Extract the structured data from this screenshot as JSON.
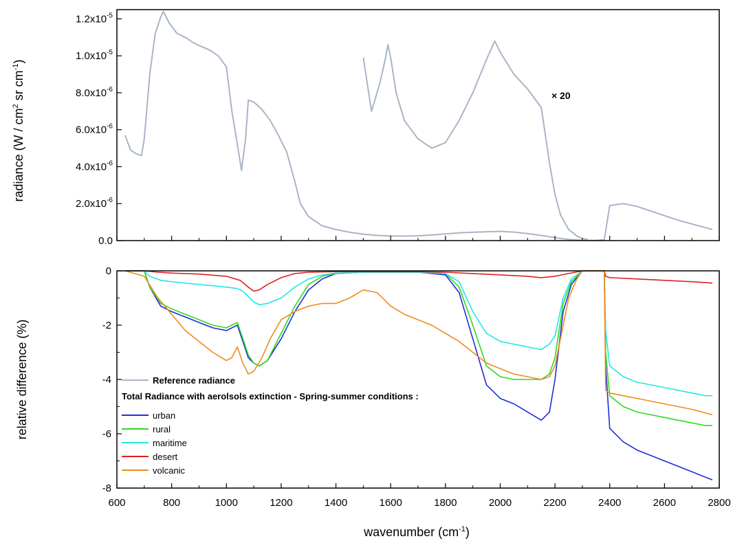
{
  "chart_data": [
    {
      "type": "line",
      "ylabel_main": "radiance (W / cm",
      "ylabel_sup1": "2",
      "ylabel_mid": " sr cm",
      "ylabel_sup2": "-1",
      "ylabel_end": ")",
      "xlim": [
        600,
        2800
      ],
      "ylim": [
        0,
        1.25e-05
      ],
      "grid": false,
      "annotation": "× 20",
      "yticks": [
        {
          "value": 0,
          "label": "0.0",
          "exp": ""
        },
        {
          "value": 2e-06,
          "label": "2.0x10",
          "exp": "-6"
        },
        {
          "value": 4e-06,
          "label": "4.0x10",
          "exp": "-6"
        },
        {
          "value": 6e-06,
          "label": "6.0x10",
          "exp": "-6"
        },
        {
          "value": 8e-06,
          "label": "8.0x10",
          "exp": "-6"
        },
        {
          "value": 1e-05,
          "label": "1.0x10",
          "exp": "-5"
        },
        {
          "value": 1.2e-05,
          "label": "1.2x10",
          "exp": "-5"
        }
      ],
      "series": [
        {
          "color": "#a9b4c6",
          "x": [
            630,
            650,
            670,
            690,
            700,
            720,
            740,
            760,
            770,
            790,
            820,
            850,
            880,
            910,
            940,
            970,
            1000,
            1020,
            1040,
            1055,
            1070,
            1080,
            1100,
            1130,
            1160,
            1190,
            1220,
            1250,
            1270,
            1300,
            1350,
            1400,
            1450,
            1500,
            1550,
            1600,
            1650,
            1700,
            1750,
            1800,
            1850,
            1900,
            1950,
            2000,
            2050,
            2100,
            2150,
            2200,
            2250,
            2300,
            2350,
            2380,
            2400,
            2450,
            2500,
            2550,
            2600,
            2650,
            2700,
            2750,
            2775
          ],
          "y": [
            5.7e-06,
            4.9e-06,
            4.7e-06,
            4.6e-06,
            5.5e-06,
            9e-06,
            1.12e-05,
            1.21e-05,
            1.24e-05,
            1.18e-05,
            1.12e-05,
            1.1e-05,
            1.07e-05,
            1.05e-05,
            1.03e-05,
            1e-05,
            9.4e-06,
            7e-06,
            5.2e-06,
            3.8e-06,
            5.5e-06,
            7.6e-06,
            7.5e-06,
            7.1e-06,
            6.5e-06,
            5.7e-06,
            4.8e-06,
            3.2e-06,
            2e-06,
            1.3e-06,
            8e-07,
            6e-07,
            4.5e-07,
            3.5e-07,
            2.8e-07,
            2.5e-07,
            2.4e-07,
            2.6e-07,
            3e-07,
            3.6e-07,
            4.2e-07,
            4.5e-07,
            4.8e-07,
            5e-07,
            4.6e-07,
            3.8e-07,
            2.8e-07,
            1.6e-07,
            6e-08,
            2e-08,
            1e-08,
            5e-08,
            1.9e-06,
            2e-06,
            1.85e-06,
            1.6e-06,
            1.35e-06,
            1.1e-06,
            9e-07,
            7e-07,
            6e-07
          ]
        },
        {
          "color": "#a9b4c6",
          "x": [
            1500,
            1530,
            1560,
            1580,
            1590,
            1600,
            1620,
            1650,
            1700,
            1750,
            1800,
            1850,
            1900,
            1950,
            1980,
            2000,
            2050,
            2100,
            2150,
            2180,
            2200,
            2220,
            2250,
            2280,
            2300,
            2320
          ],
          "y": [
            9.9e-06,
            7e-06,
            8.5e-06,
            9.8e-06,
            1.06e-05,
            9.9e-06,
            8e-06,
            6.5e-06,
            5.5e-06,
            5e-06,
            5.3e-06,
            6.5e-06,
            8e-06,
            9.8e-06,
            1.08e-05,
            1.02e-05,
            9e-06,
            8.2e-06,
            7.2e-06,
            4.2e-06,
            2.5e-06,
            1.4e-06,
            6e-07,
            2.5e-07,
            1.2e-07,
            6e-08
          ]
        }
      ]
    },
    {
      "type": "line",
      "ylabel": "relative difference (%)",
      "xlabel_main": "wavenumber (cm",
      "xlabel_sup": "-1",
      "xlabel_end": ")",
      "xlim": [
        600,
        2800
      ],
      "ylim": [
        -8,
        0
      ],
      "grid": false,
      "xticks": [
        600,
        800,
        1000,
        1200,
        1400,
        1600,
        1800,
        2000,
        2200,
        2400,
        2600,
        2800
      ],
      "yticks": [
        {
          "value": 0,
          "label": "0"
        },
        {
          "value": -2,
          "label": "-2"
        },
        {
          "value": -4,
          "label": "-4"
        },
        {
          "value": -6,
          "label": "-6"
        },
        {
          "value": -8,
          "label": "-8"
        }
      ],
      "legend": {
        "reference": "Reference radiance",
        "header": "Total Radiance with aerolsols extinction - Spring-summer conditions :",
        "placement": "bottom-left"
      },
      "series": [
        {
          "name": "urban",
          "color": "#1c2ed6",
          "x": [
            630,
            700,
            720,
            760,
            800,
            850,
            900,
            950,
            1000,
            1040,
            1060,
            1080,
            1100,
            1120,
            1150,
            1200,
            1250,
            1300,
            1350,
            1400,
            1500,
            1600,
            1700,
            1800,
            1850,
            1900,
            1950,
            2000,
            2050,
            2100,
            2150,
            2180,
            2200,
            2230,
            2260,
            2300,
            2380,
            2385,
            2400,
            2450,
            2500,
            2550,
            2600,
            2650,
            2700,
            2750,
            2775
          ],
          "y": [
            0,
            0,
            -0.6,
            -1.3,
            -1.5,
            -1.7,
            -1.9,
            -2.1,
            -2.2,
            -2.0,
            -2.6,
            -3.2,
            -3.4,
            -3.5,
            -3.3,
            -2.5,
            -1.5,
            -0.7,
            -0.3,
            -0.1,
            -0.05,
            -0.05,
            -0.05,
            -0.15,
            -0.8,
            -2.5,
            -4.2,
            -4.7,
            -4.9,
            -5.2,
            -5.5,
            -5.2,
            -4.0,
            -1.5,
            -0.5,
            0,
            0,
            -3.5,
            -5.8,
            -6.3,
            -6.6,
            -6.8,
            -7.0,
            -7.2,
            -7.4,
            -7.6,
            -7.7
          ]
        },
        {
          "name": "rural",
          "color": "#2ed81e",
          "x": [
            630,
            700,
            720,
            760,
            800,
            850,
            900,
            950,
            1000,
            1040,
            1060,
            1080,
            1100,
            1120,
            1150,
            1200,
            1250,
            1300,
            1350,
            1400,
            1500,
            1600,
            1700,
            1800,
            1850,
            1900,
            1950,
            2000,
            2050,
            2100,
            2150,
            2180,
            2200,
            2230,
            2260,
            2300,
            2380,
            2385,
            2400,
            2450,
            2500,
            2550,
            2600,
            2650,
            2700,
            2750,
            2775
          ],
          "y": [
            0,
            0,
            -0.6,
            -1.2,
            -1.4,
            -1.6,
            -1.8,
            -2.0,
            -2.1,
            -1.9,
            -2.5,
            -3.1,
            -3.4,
            -3.5,
            -3.3,
            -2.3,
            -1.3,
            -0.5,
            -0.2,
            -0.1,
            -0.05,
            -0.05,
            -0.05,
            -0.1,
            -0.6,
            -2.0,
            -3.5,
            -3.9,
            -4.0,
            -4.0,
            -4.0,
            -3.8,
            -3.2,
            -1.2,
            -0.4,
            0,
            0,
            -3.0,
            -4.6,
            -5.0,
            -5.2,
            -5.3,
            -5.4,
            -5.5,
            -5.6,
            -5.7,
            -5.7
          ]
        },
        {
          "name": "maritime",
          "color": "#22e6e6",
          "x": [
            630,
            700,
            720,
            760,
            800,
            850,
            900,
            950,
            1000,
            1040,
            1060,
            1080,
            1100,
            1120,
            1150,
            1200,
            1250,
            1300,
            1350,
            1400,
            1500,
            1600,
            1700,
            1800,
            1850,
            1900,
            1950,
            2000,
            2050,
            2100,
            2150,
            2180,
            2200,
            2230,
            2260,
            2300,
            2380,
            2385,
            2400,
            2450,
            2500,
            2550,
            2600,
            2650,
            2700,
            2750,
            2775
          ],
          "y": [
            0,
            0,
            -0.2,
            -0.35,
            -0.4,
            -0.45,
            -0.5,
            -0.55,
            -0.6,
            -0.65,
            -0.75,
            -0.95,
            -1.15,
            -1.25,
            -1.2,
            -1.0,
            -0.6,
            -0.3,
            -0.15,
            -0.08,
            -0.05,
            -0.05,
            -0.05,
            -0.1,
            -0.4,
            -1.5,
            -2.3,
            -2.6,
            -2.7,
            -2.8,
            -2.9,
            -2.7,
            -2.4,
            -1.0,
            -0.3,
            0,
            0,
            -2.2,
            -3.5,
            -3.9,
            -4.1,
            -4.2,
            -4.3,
            -4.4,
            -4.5,
            -4.6,
            -4.6
          ]
        },
        {
          "name": "desert",
          "color": "#dc2020",
          "x": [
            630,
            700,
            750,
            800,
            900,
            1000,
            1050,
            1080,
            1100,
            1120,
            1150,
            1200,
            1250,
            1300,
            1400,
            1500,
            1600,
            1700,
            1800,
            1900,
            2000,
            2100,
            2150,
            2200,
            2250,
            2300,
            2380,
            2385,
            2400,
            2500,
            2600,
            2700,
            2775
          ],
          "y": [
            0,
            0,
            -0.05,
            -0.08,
            -0.12,
            -0.2,
            -0.35,
            -0.6,
            -0.75,
            -0.7,
            -0.5,
            -0.25,
            -0.1,
            -0.05,
            -0.03,
            -0.03,
            -0.03,
            -0.03,
            -0.05,
            -0.1,
            -0.15,
            -0.2,
            -0.25,
            -0.2,
            -0.1,
            0,
            0,
            -0.2,
            -0.25,
            -0.3,
            -0.35,
            -0.4,
            -0.45
          ]
        },
        {
          "name": "volcanic",
          "color": "#f08a1c",
          "x": [
            630,
            700,
            750,
            800,
            850,
            900,
            950,
            1000,
            1020,
            1040,
            1060,
            1080,
            1100,
            1130,
            1160,
            1200,
            1250,
            1300,
            1350,
            1400,
            1450,
            1500,
            1550,
            1600,
            1650,
            1700,
            1750,
            1800,
            1850,
            1900,
            1950,
            2000,
            2050,
            2100,
            2150,
            2180,
            2200,
            2220,
            2250,
            2280,
            2300,
            2380,
            2385,
            2400,
            2500,
            2600,
            2700,
            2775
          ],
          "y": [
            0,
            -0.2,
            -1.0,
            -1.6,
            -2.2,
            -2.6,
            -3.0,
            -3.3,
            -3.2,
            -2.8,
            -3.4,
            -3.8,
            -3.7,
            -3.2,
            -2.5,
            -1.8,
            -1.5,
            -1.3,
            -1.2,
            -1.2,
            -1.0,
            -0.7,
            -0.8,
            -1.3,
            -1.6,
            -1.8,
            -2.0,
            -2.3,
            -2.6,
            -3.0,
            -3.4,
            -3.6,
            -3.8,
            -3.9,
            -4.0,
            -3.9,
            -3.5,
            -2.5,
            -1.0,
            -0.3,
            0,
            0,
            -4.4,
            -4.5,
            -4.7,
            -4.9,
            -5.1,
            -5.3
          ]
        }
      ]
    }
  ]
}
